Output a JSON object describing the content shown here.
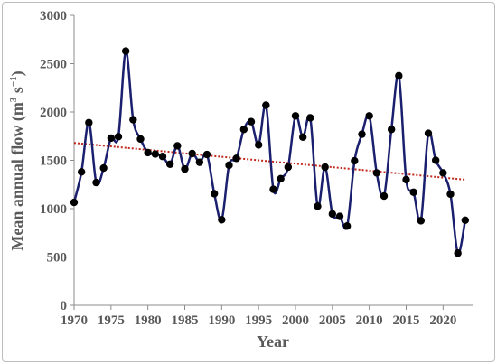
{
  "chart_data": {
    "type": "line",
    "xlabel": "Year",
    "ylabel_main": "Mean annual flow  (m",
    "ylabel_sup1": "3",
    "ylabel_mid": " s",
    "ylabel_sup2": "−1",
    "ylabel_end": ")",
    "xlim": [
      1970,
      2024
    ],
    "ylim": [
      0,
      3000
    ],
    "xticks": [
      1970,
      1975,
      1980,
      1985,
      1990,
      1995,
      2000,
      2005,
      2010,
      2015,
      2020
    ],
    "yticks": [
      0,
      500,
      1000,
      1500,
      2000,
      2500,
      3000
    ],
    "grid": false,
    "colors": {
      "line": "#1a1f6e",
      "marker": "#000000",
      "trend": "#c0281b",
      "axis": "#8c8c8c"
    },
    "series": [
      {
        "x": [
          1970,
          1971,
          1972,
          1973,
          1974,
          1975,
          1976,
          1977,
          1978,
          1979,
          1980,
          1981,
          1982,
          1983,
          1984,
          1985,
          1986,
          1987,
          1988,
          1989,
          1990,
          1991,
          1992,
          1993,
          1994,
          1995,
          1996,
          1997,
          1998,
          1999,
          2000,
          2001,
          2002,
          2003,
          2004,
          2005,
          2006,
          2007,
          2008,
          2009,
          2010,
          2011,
          2012,
          2013,
          2014,
          2015,
          2016,
          2017,
          2018,
          2019,
          2020,
          2021,
          2022,
          2023
        ],
        "values": [
          1065,
          1380,
          1890,
          1270,
          1420,
          1730,
          1745,
          2630,
          1920,
          1720,
          1580,
          1565,
          1540,
          1460,
          1650,
          1410,
          1570,
          1480,
          1560,
          1155,
          885,
          1450,
          1520,
          1820,
          1900,
          1660,
          2070,
          1200,
          1310,
          1430,
          1960,
          1740,
          1940,
          1025,
          1430,
          945,
          920,
          820,
          1495,
          1770,
          1960,
          1370,
          1130,
          1820,
          2375,
          1300,
          1170,
          875,
          1780,
          1500,
          1370,
          1150,
          540,
          880
        ]
      }
    ],
    "trendline": {
      "x": [
        1970,
        2023
      ],
      "values": [
        1680,
        1300
      ]
    }
  }
}
